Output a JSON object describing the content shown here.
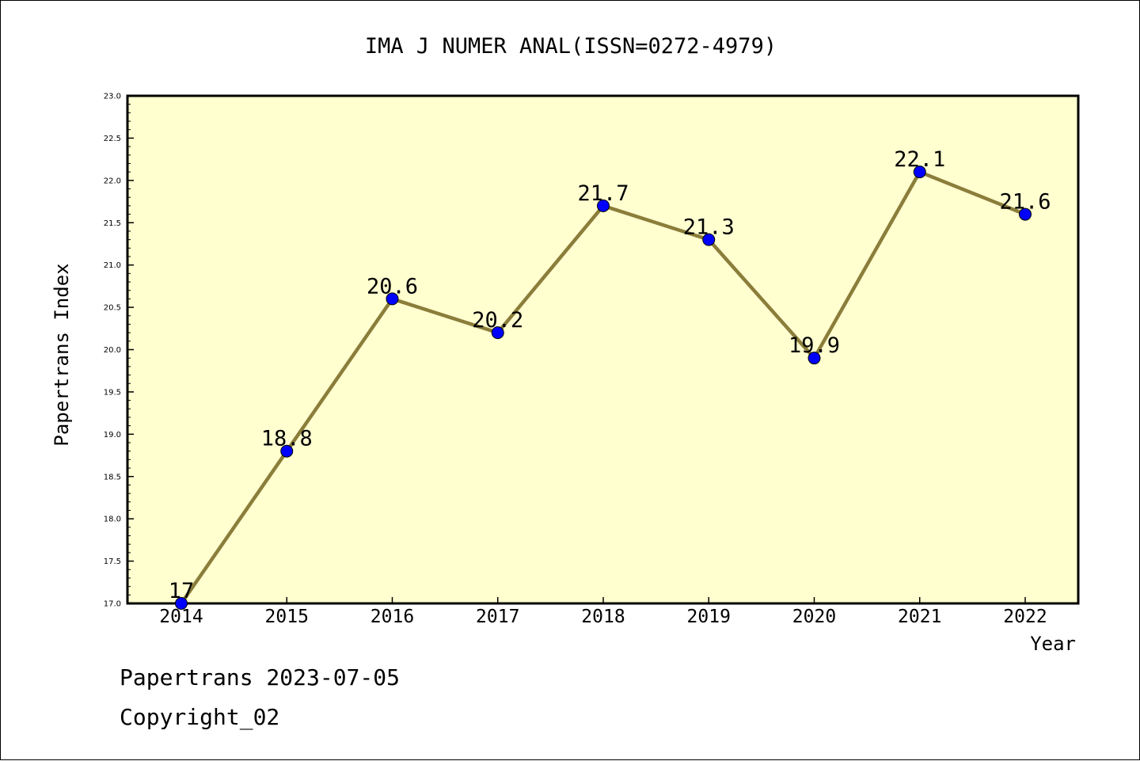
{
  "chart_data": {
    "type": "line",
    "title": "IMA J NUMER ANAL(ISSN=0272-4979)",
    "xlabel": "Year",
    "ylabel": "Papertrans Index",
    "categories": [
      "2014",
      "2015",
      "2016",
      "2017",
      "2018",
      "2019",
      "2020",
      "2021",
      "2022"
    ],
    "values": [
      17,
      18.8,
      20.6,
      20.2,
      21.7,
      21.3,
      19.9,
      22.1,
      21.6
    ],
    "data_labels": [
      "17",
      "18.8",
      "20.6",
      "20.2",
      "21.7",
      "21.3",
      "19.9",
      "22.1",
      "21.6"
    ],
    "ylim": [
      17.0,
      23.0
    ],
    "yticks": [
      "17.0",
      "17.5",
      "18.0",
      "18.5",
      "19.0",
      "19.5",
      "20.0",
      "20.5",
      "21.0",
      "21.5",
      "22.0",
      "22.5",
      "23.0"
    ],
    "grid": false,
    "legend": "none",
    "colors": {
      "plot_background": "#ffffd0",
      "line": "#8b7d3a",
      "marker": "#0000ff"
    }
  },
  "footer": {
    "source": "Papertrans 2023-07-05",
    "copyright": "Copyright_02"
  }
}
